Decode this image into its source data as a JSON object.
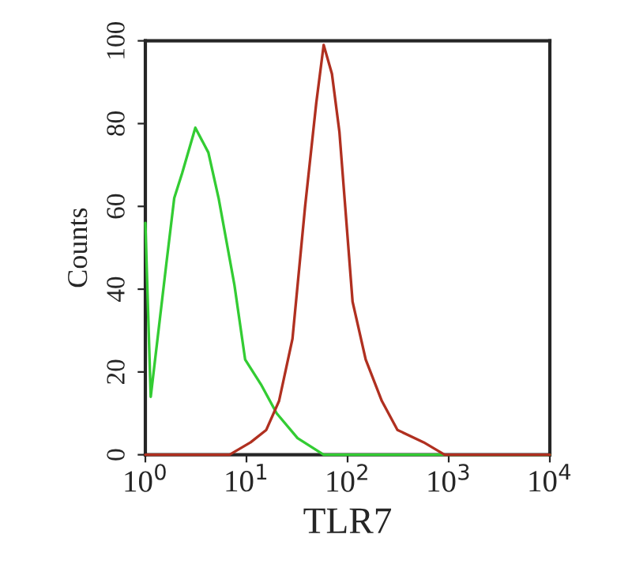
{
  "chart_data": {
    "type": "line",
    "xlabel": "TLR7",
    "ylabel": "Counts",
    "log": "x",
    "grid": false,
    "xlim": [
      1,
      10000
    ],
    "xticks": [
      {
        "value": 1,
        "label": "10$^{0}$"
      },
      {
        "value": 10,
        "label": "10$^{1}$"
      },
      {
        "value": 100,
        "label": "10$^{2}$"
      },
      {
        "value": 1000,
        "label": "10$^{3}$"
      },
      {
        "value": 10000,
        "label": "10$^{4}$"
      }
    ],
    "ylim": [
      0,
      100
    ],
    "yticks": [
      0,
      20,
      40,
      60,
      80,
      100
    ],
    "series": [
      {
        "color": "#33cc33",
        "x": [
          1,
          1.13,
          1.61,
          1.93,
          2.31,
          3.12,
          4.2,
          5.3,
          7.6,
          9.7,
          13.9,
          19.9,
          32,
          58,
          811,
          10000
        ],
        "values": [
          56,
          14,
          46,
          62,
          68,
          79,
          73,
          62,
          41,
          23,
          17,
          10,
          4,
          0,
          0,
          0
        ]
      },
      {
        "color": "#b03020",
        "x": [
          1,
          6.8,
          11,
          15.7,
          21,
          28.5,
          38,
          49,
          58,
          70,
          83,
          112,
          151,
          218,
          311,
          565,
          912,
          10000
        ],
        "values": [
          0,
          0,
          3,
          6,
          13,
          28,
          60,
          85,
          99,
          92,
          78,
          37,
          23,
          13,
          6,
          3,
          0,
          0
        ]
      }
    ]
  }
}
